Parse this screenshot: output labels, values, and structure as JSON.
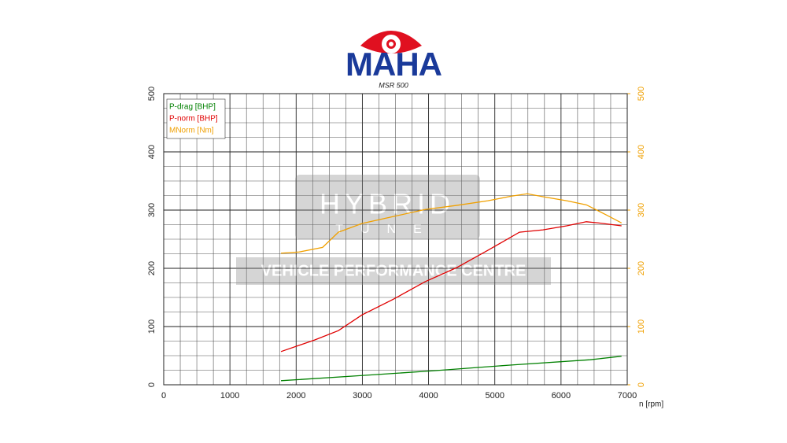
{
  "chart_data": {
    "type": "line",
    "brand": "MAHA",
    "subtitle": "MSR 500",
    "watermark": [
      "HYBRID",
      "TUNE",
      "VEHICLE PERFORMANCE CENTRE"
    ],
    "x_label": "n [rpm]",
    "xlim": [
      0,
      7000
    ],
    "xticks": [
      0,
      1000,
      2000,
      3000,
      4000,
      5000,
      6000,
      7000
    ],
    "ylim": [
      0,
      500
    ],
    "yticks": [
      0,
      100,
      200,
      300,
      400,
      500
    ],
    "y2lim": [
      0,
      500
    ],
    "y2ticks": [
      0,
      100,
      200,
      300,
      400,
      500
    ],
    "y2color": "#f0a000",
    "grid": true,
    "legend": "top-left",
    "series": [
      {
        "name": "P-drag [BHP]",
        "color": "#008000",
        "x": [
          1771,
          2876,
          4065,
          5253,
          6441,
          6914
        ],
        "values": [
          7,
          15,
          24,
          34,
          43,
          49
        ]
      },
      {
        "name": "P-norm [BHP]",
        "color": "#e00000",
        "x": [
          1771,
          2282,
          2638,
          2995,
          3470,
          3946,
          4421,
          4896,
          5372,
          5728,
          6085,
          6382,
          6560,
          6914
        ],
        "values": [
          57,
          77,
          93,
          120,
          147,
          177,
          201,
          231,
          262,
          266,
          273,
          280,
          278,
          273
        ]
      },
      {
        "name": "MNorm [Nm]",
        "color": "#f0a000",
        "axis": "y2",
        "x": [
          1771,
          2044,
          2400,
          2638,
          2995,
          3470,
          3946,
          4421,
          4896,
          5253,
          5491,
          5728,
          6085,
          6382,
          6679,
          6914
        ],
        "values": [
          226,
          228,
          236,
          262,
          277,
          289,
          301,
          308,
          316,
          324,
          328,
          323,
          316,
          309,
          292,
          278
        ]
      }
    ]
  }
}
